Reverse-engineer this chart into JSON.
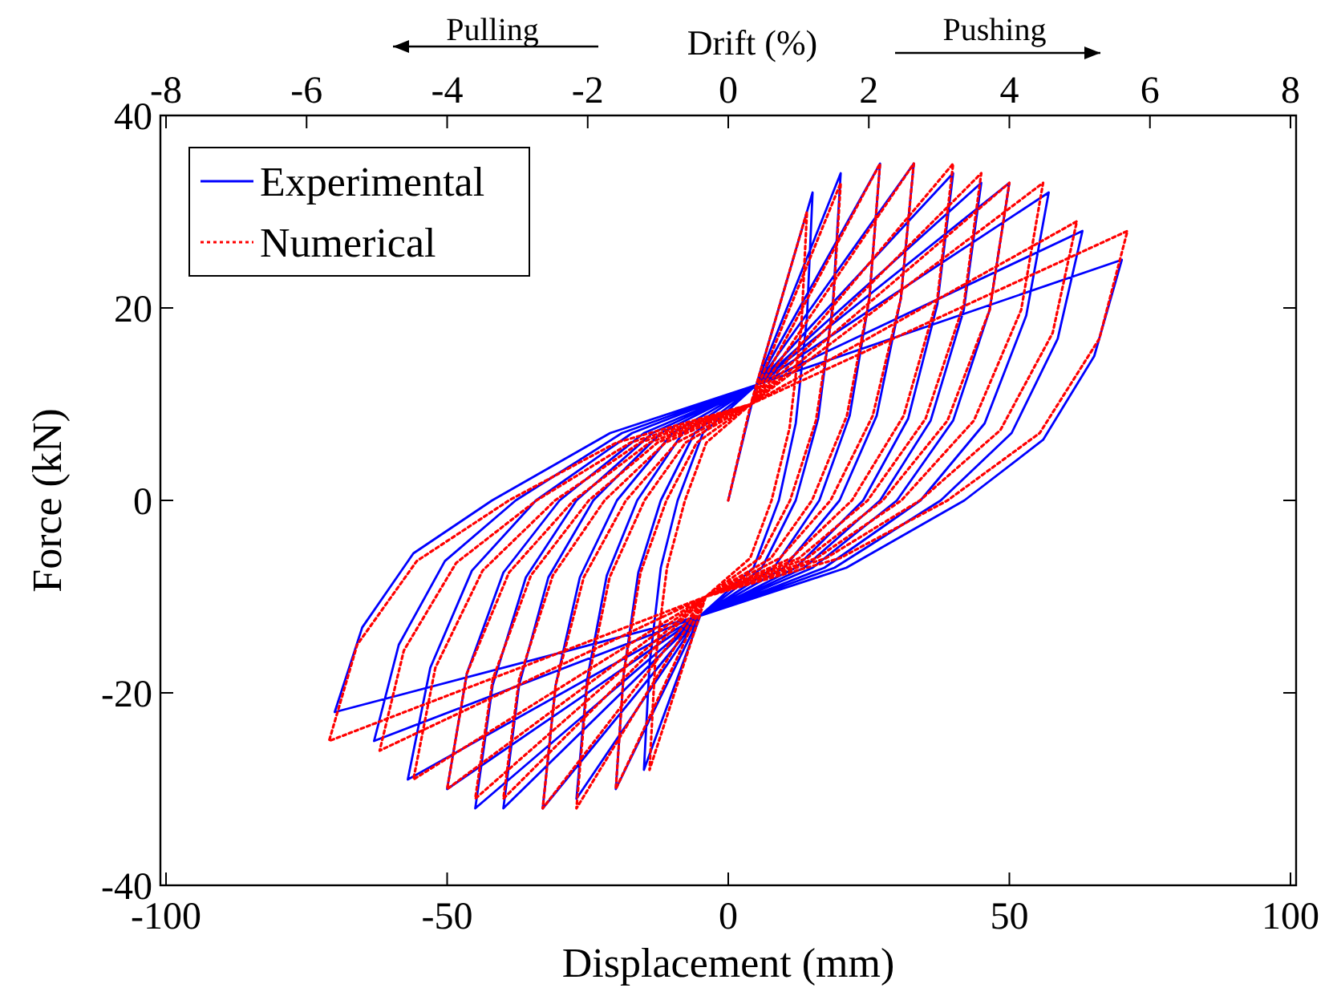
{
  "chart_data": {
    "type": "line",
    "xlabel": "Displacement (mm)",
    "ylabel": "Force (kN)",
    "x2label": "Drift (%)",
    "annotations": [
      "Pulling",
      "Pushing"
    ],
    "xlim": [
      -101,
      101
    ],
    "xticks": [
      -100,
      -50,
      0,
      50,
      100
    ],
    "x2lim": [
      -8.08,
      8.08
    ],
    "x2ticks": [
      -8,
      -6,
      -4,
      -2,
      0,
      2,
      4,
      6,
      8
    ],
    "ylim": [
      -40,
      40
    ],
    "yticks": [
      -40,
      -20,
      0,
      20,
      40
    ],
    "grid": false,
    "legend": "top left",
    "series": [
      {
        "name": "Experimental",
        "color": "#0000ff",
        "line_style": "solid",
        "x": [
          0,
          5,
          15,
          14,
          12,
          9,
          4.5,
          -5,
          -15,
          -14,
          -12,
          -9,
          -4.5,
          5,
          20,
          18.6,
          16,
          12,
          6,
          -5,
          -20,
          -18.6,
          -16,
          -12,
          -6,
          5,
          27,
          25.1,
          21.6,
          16.2,
          8.1,
          -5,
          -27,
          -25.1,
          -21.6,
          -16.2,
          -8.1,
          5,
          33,
          30.7,
          26.4,
          19.8,
          9.9,
          -5,
          -33,
          -30.7,
          -26.4,
          -19.8,
          -9.9,
          5,
          40,
          37.2,
          32,
          24,
          12,
          -5,
          -40,
          -37.2,
          -32,
          -24,
          -12,
          5,
          45,
          41.9,
          36,
          27,
          13.5,
          -5,
          -45,
          -41.9,
          -36,
          -27,
          -13.5,
          5,
          50,
          46.5,
          40,
          30,
          15,
          -5,
          -50,
          -46.5,
          -40,
          -30,
          -15,
          5,
          57,
          53,
          45.6,
          34.2,
          17.1,
          -5,
          -57,
          -53,
          -45.6,
          -34.2,
          -17.1,
          5,
          63,
          58.6,
          50.4,
          37.8,
          18.9,
          -5,
          -63,
          -58.6,
          -50.4,
          -37.8,
          -18.9,
          5,
          70,
          65.1,
          56,
          42,
          21,
          -5,
          -70,
          -65.1,
          -56,
          -42,
          -21,
          5
        ],
        "values": [
          0,
          12,
          32,
          19,
          8,
          0,
          -7,
          -12,
          -28,
          -17,
          -7,
          0,
          7,
          12,
          34,
          20.4,
          8.5,
          0,
          -7,
          -12,
          -30,
          -18,
          -7.5,
          0,
          7,
          12,
          35,
          21,
          8.8,
          0,
          -7,
          -12,
          -31,
          -18.6,
          -7.8,
          0,
          7,
          12,
          35,
          21,
          8.8,
          0,
          -7,
          -12,
          -32,
          -19.2,
          -8,
          0,
          7,
          12,
          34,
          20.4,
          8.5,
          0,
          -7,
          -12,
          -32,
          -19.2,
          -8,
          0,
          7,
          12,
          33,
          19.8,
          8.3,
          0,
          -7,
          -12,
          -32,
          -19.2,
          -8,
          0,
          7,
          12,
          33,
          19.8,
          8.3,
          0,
          -7,
          -12,
          -30,
          -18,
          -7.5,
          0,
          7,
          12,
          32,
          19.2,
          8,
          0,
          -7,
          -12,
          -29,
          -17.4,
          -7.3,
          0,
          7,
          12,
          28,
          16.8,
          7,
          0,
          -7,
          -12,
          -25,
          -15,
          -6.3,
          0,
          7,
          12,
          25,
          15,
          6.3,
          0,
          -7,
          -12,
          -22,
          -13.2,
          -5.5,
          0,
          7,
          12
        ]
      },
      {
        "name": "Numerical",
        "color": "#ff0000",
        "line_style": "dotted",
        "x": [
          0,
          4,
          14,
          13,
          10.9,
          7.7,
          3.9,
          -4,
          -14,
          -13,
          -10.9,
          -7.7,
          -3.9,
          4,
          20,
          18.6,
          15.6,
          11,
          5.6,
          -4,
          -20,
          -18.6,
          -15.6,
          -11,
          -5.6,
          4,
          27,
          25.1,
          21.1,
          14.9,
          7.6,
          -4,
          -27,
          -25.1,
          -21.1,
          -14.9,
          -7.6,
          4,
          33,
          30.7,
          25.7,
          18.2,
          9.2,
          -4,
          -33,
          -30.7,
          -25.7,
          -18.2,
          -9.2,
          4,
          40,
          37.2,
          31.2,
          22,
          11.2,
          -4,
          -40,
          -37.2,
          -31.2,
          -22,
          -11.2,
          4,
          45,
          41.9,
          35.1,
          24.8,
          12.6,
          -4,
          -45,
          -41.9,
          -35.1,
          -24.8,
          -12.6,
          4,
          50,
          46.5,
          39,
          27.5,
          14,
          -4,
          -50,
          -46.5,
          -39,
          -27.5,
          -14,
          4,
          56,
          52.1,
          43.7,
          30.8,
          15.7,
          -4,
          -56,
          -52.1,
          -43.7,
          -30.8,
          -15.7,
          4,
          62,
          57.7,
          48.4,
          34.1,
          17.4,
          -4,
          -62,
          -57.7,
          -48.4,
          -34.1,
          -17.4,
          4,
          71,
          66,
          55.4,
          39,
          19.9,
          -4,
          -71,
          -66,
          -55.4,
          -39,
          -19.9,
          4
        ],
        "values": [
          0,
          10,
          30,
          18,
          7.5,
          0,
          -6,
          -10,
          -28,
          -16.8,
          -7,
          0,
          6,
          10,
          33,
          19.8,
          8.3,
          0,
          -6,
          -10,
          -30,
          -18,
          -7.5,
          0,
          6,
          10,
          35,
          21,
          8.8,
          0,
          -6,
          -10,
          -32,
          -19.2,
          -8,
          0,
          6,
          10,
          35,
          21,
          8.8,
          0,
          -6,
          -10,
          -32,
          -19.2,
          -8,
          0,
          6,
          10,
          35,
          21,
          8.8,
          0,
          -6,
          -10,
          -31,
          -18.6,
          -7.8,
          0,
          6,
          10,
          34,
          20.4,
          8.5,
          0,
          -6,
          -10,
          -31,
          -18.6,
          -7.8,
          0,
          6,
          10,
          33,
          19.8,
          8.3,
          0,
          -6,
          -10,
          -30,
          -18,
          -7.5,
          0,
          6,
          10,
          33,
          19.8,
          8.3,
          0,
          -6,
          -10,
          -29,
          -17.4,
          -7.3,
          0,
          6,
          10,
          29,
          17.4,
          7.3,
          0,
          -6,
          -10,
          -26,
          -15.6,
          -6.5,
          0,
          6,
          10,
          28,
          16.8,
          7,
          0,
          -6,
          -10,
          -25,
          -15,
          -6.3,
          0,
          6,
          10
        ]
      }
    ]
  }
}
